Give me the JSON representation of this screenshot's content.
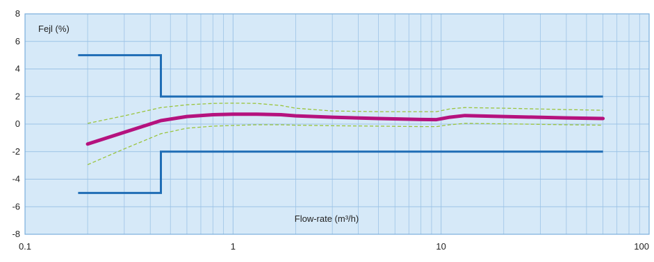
{
  "chart_data": {
    "type": "line",
    "xscale": "log",
    "xlim": [
      0.1,
      100
    ],
    "ylim": [
      -8,
      8
    ],
    "xlabel": "Flow-rate (m³/h)",
    "ylabel": "Fejl (%)",
    "grid": true,
    "colors": {
      "background": "#d6e9f8",
      "grid": "#9cc3e6",
      "frame": "#7aaedc",
      "limits": "#1f6db5",
      "error_curve": "#b5127e",
      "band": "#9ac43c"
    },
    "x_ticks": [
      0.1,
      1,
      10,
      100
    ],
    "x_tick_labels": [
      "0.1",
      "1",
      "10",
      "100"
    ],
    "y_ticks": [
      -8,
      -6,
      -4,
      -2,
      0,
      2,
      4,
      6,
      8
    ],
    "y_tick_labels": [
      "-8",
      "-6",
      "-4",
      "-2",
      "0",
      "2",
      "4",
      "6",
      "8"
    ],
    "series": [
      {
        "role": "limit",
        "style": "upper-limit",
        "x": [
          0.18,
          0.45,
          0.45,
          60
        ],
        "y": [
          5,
          5,
          2,
          2
        ]
      },
      {
        "role": "limit",
        "style": "lower-limit",
        "x": [
          0.18,
          0.45,
          0.45,
          60
        ],
        "y": [
          -5,
          -5,
          -2,
          -2
        ]
      },
      {
        "role": "curve",
        "style": "error-curve",
        "x": [
          0.2,
          0.3,
          0.45,
          0.6,
          0.8,
          1.0,
          1.3,
          1.7,
          2.0,
          3,
          5,
          8,
          9.5,
          11,
          13,
          20,
          40,
          60
        ],
        "y": [
          -1.45,
          -0.6,
          0.25,
          0.55,
          0.68,
          0.72,
          0.72,
          0.68,
          0.6,
          0.5,
          0.4,
          0.33,
          0.32,
          0.5,
          0.62,
          0.55,
          0.45,
          0.4
        ]
      },
      {
        "role": "band",
        "style": "upper-band",
        "x": [
          0.2,
          0.3,
          0.45,
          0.6,
          0.8,
          1.0,
          1.3,
          1.7,
          2.0,
          3,
          5,
          8,
          9.5,
          11,
          13,
          20,
          40,
          60
        ],
        "y": [
          0.05,
          0.6,
          1.2,
          1.4,
          1.5,
          1.52,
          1.5,
          1.35,
          1.15,
          0.95,
          0.9,
          0.9,
          0.9,
          1.1,
          1.2,
          1.15,
          1.05,
          1.0
        ]
      },
      {
        "role": "band",
        "style": "lower-band",
        "x": [
          0.2,
          0.3,
          0.45,
          0.6,
          0.8,
          1.0,
          1.3,
          1.7,
          2.0,
          3,
          5,
          8,
          9.5,
          11,
          13,
          20,
          40,
          60
        ],
        "y": [
          -2.95,
          -1.8,
          -0.7,
          -0.3,
          -0.15,
          -0.1,
          -0.05,
          -0.05,
          -0.08,
          -0.12,
          -0.15,
          -0.18,
          -0.18,
          -0.05,
          0.05,
          0.02,
          -0.05,
          -0.08
        ]
      }
    ]
  }
}
